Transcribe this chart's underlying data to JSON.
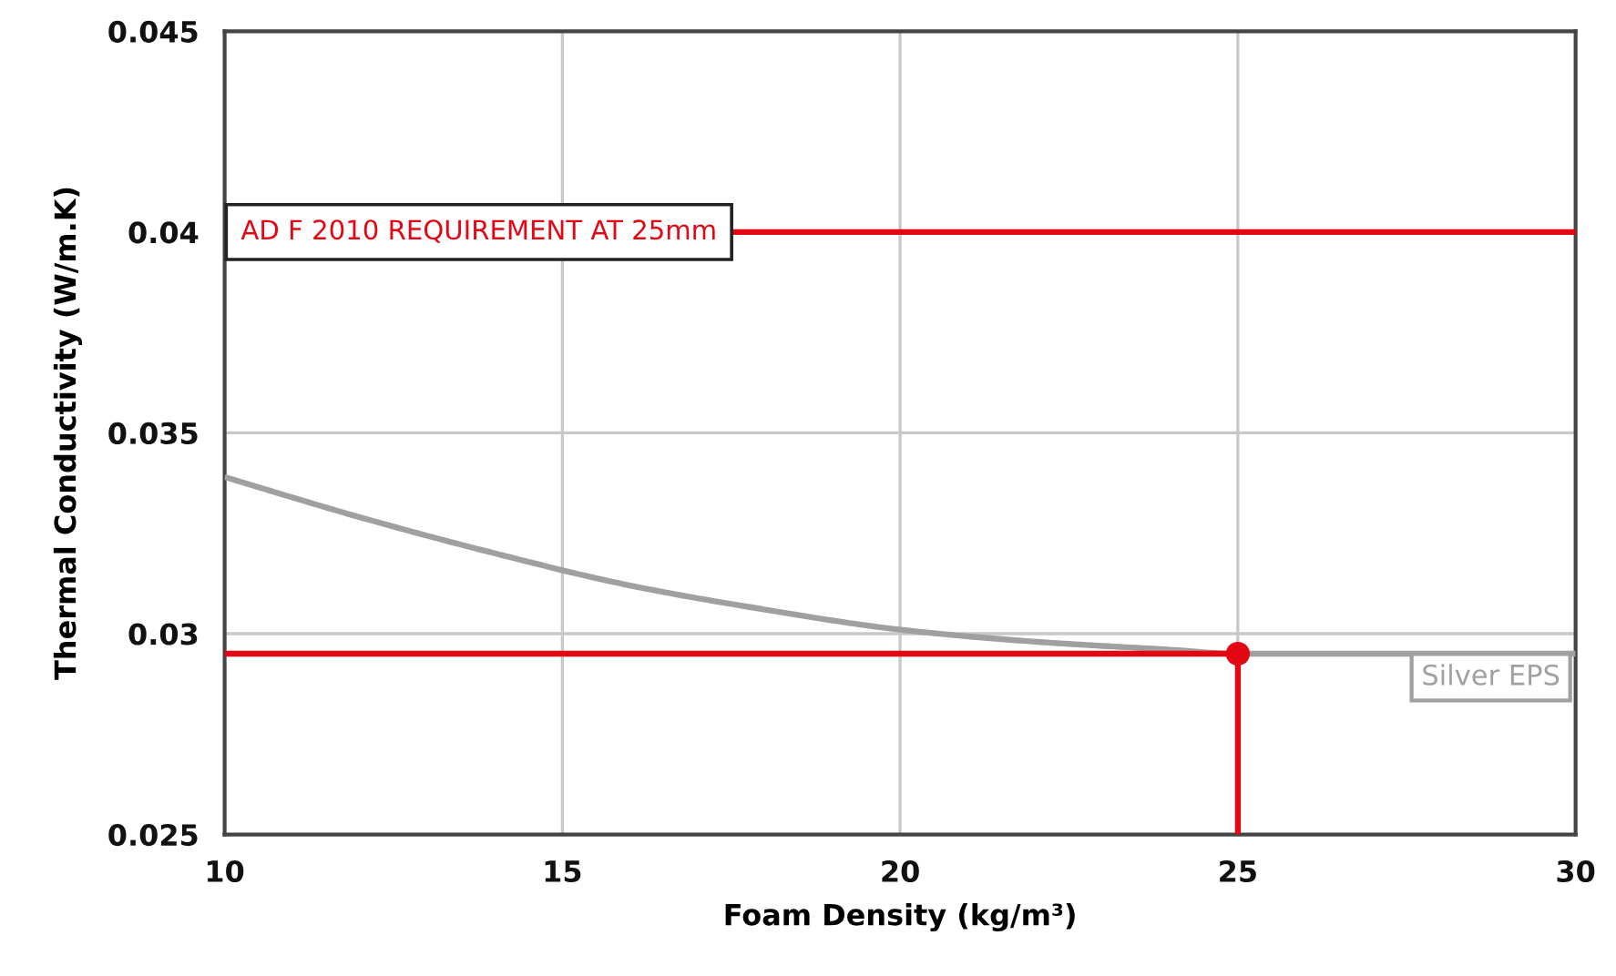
{
  "chart_data": {
    "type": "line",
    "xlabel": "Foam Density (kg/m³)",
    "ylabel": "Thermal Conductivity (W/m.K)",
    "xlim": [
      10,
      30
    ],
    "xticks": [
      10,
      15,
      20,
      25,
      30
    ],
    "ylim": [
      0.025,
      0.045
    ],
    "yticks": [
      0.025,
      0.03,
      0.035,
      0.04,
      0.045
    ],
    "grid": true,
    "series": [
      {
        "name": "Silver EPS",
        "color": "#a0a0a0",
        "x": [
          10,
          12,
          14,
          16,
          18,
          20,
          22,
          24,
          25,
          26,
          28,
          30
        ],
        "values": [
          0.0339,
          0.0329,
          0.032,
          0.0312,
          0.0306,
          0.0301,
          0.0298,
          0.0296,
          0.0295,
          0.0295,
          0.0295,
          0.0295
        ]
      },
      {
        "type": "line",
        "color": "#e30613",
        "x": [
          10,
          25,
          25
        ],
        "values": [
          0.0295,
          0.0295,
          0.025
        ]
      },
      {
        "type": "scatter",
        "color": "#e30613",
        "marker": "circle",
        "x": [
          25
        ],
        "values": [
          0.0295
        ]
      }
    ],
    "ref_lines": [
      {
        "axis": "y",
        "value": 0.04,
        "label": "AD F 2010 REQUIREMENT AT 25mm",
        "color": "#e30613"
      }
    ]
  }
}
